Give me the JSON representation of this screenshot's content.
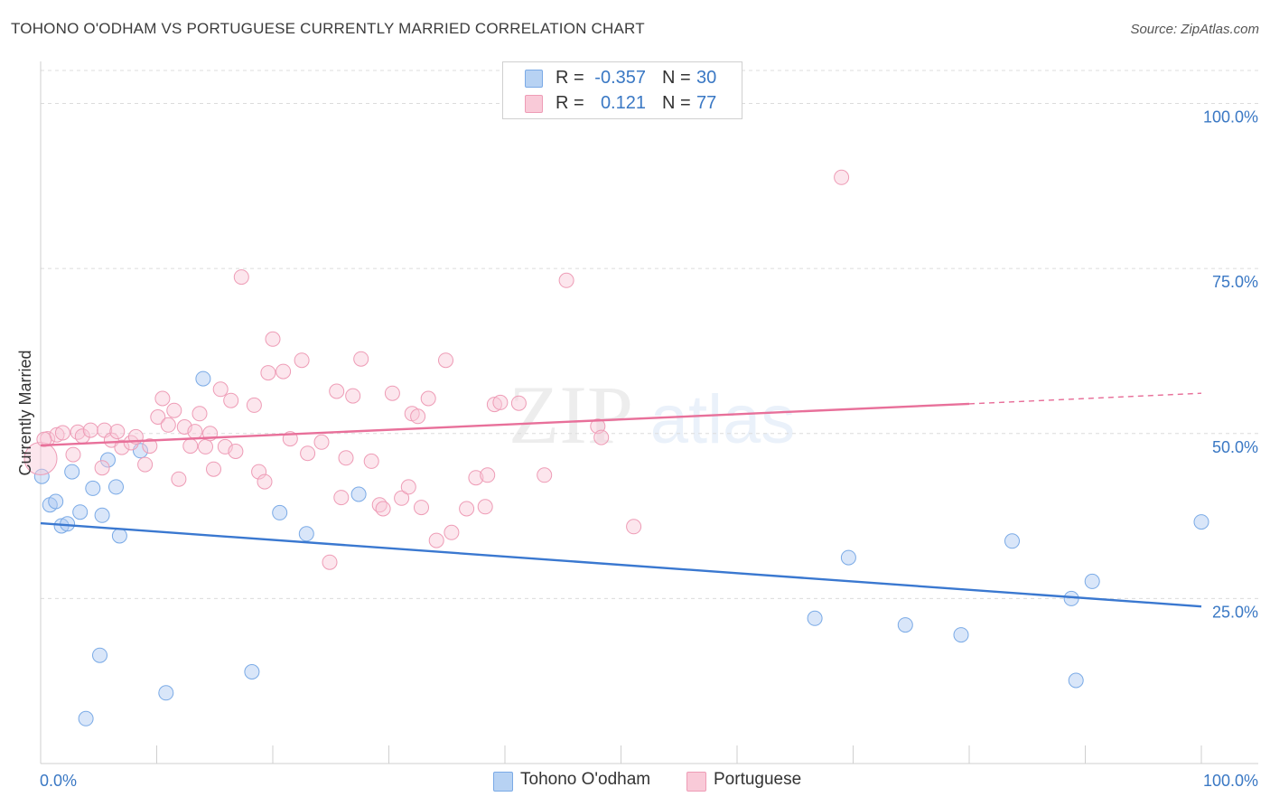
{
  "title": "TOHONO O'ODHAM VS PORTUGUESE CURRENTLY MARRIED CORRELATION CHART",
  "source": "Source: ZipAtlas.com",
  "watermark": {
    "zip": "ZIP",
    "atlas": "atlas"
  },
  "stats": [
    {
      "r_label": "R =",
      "r_value": "-0.357",
      "n_label": "N =",
      "n_value": "30",
      "color": "#a9c9f0",
      "border": "#7aaae6"
    },
    {
      "r_label": "R =",
      "r_value": "0.121",
      "n_label": "N =",
      "n_value": "77",
      "color": "#f8c3d3",
      "border": "#ee9cb6"
    }
  ],
  "legend": [
    {
      "label": "Tohono O'odham",
      "color": "#b7d2f3",
      "border": "#7aaae6"
    },
    {
      "label": "Portuguese",
      "color": "#f9cad8",
      "border": "#ee9cb6"
    }
  ],
  "chart_data": {
    "type": "scatter",
    "title": "TOHONO O'ODHAM VS PORTUGUESE CURRENTLY MARRIED CORRELATION CHART",
    "xlabel": "",
    "ylabel": "Currently Married",
    "xlim": [
      0,
      100
    ],
    "ylim": [
      0,
      105
    ],
    "x_tick_labels": [
      "0.0%",
      "100.0%"
    ],
    "y_ticks": [
      25,
      50,
      75,
      100
    ],
    "y_tick_labels": [
      "25.0%",
      "50.0%",
      "75.0%",
      "100.0%"
    ],
    "grid": true,
    "series": [
      {
        "name": "Tohono O'odham",
        "color": "#7aaae6",
        "fill": "rgba(170,200,242,0.45)",
        "line_color": "#3a78d0",
        "trend": {
          "x": [
            0,
            100
          ],
          "y": [
            36.4,
            23.8
          ]
        },
        "points": [
          [
            0.1,
            43.5
          ],
          [
            0.8,
            39.2
          ],
          [
            1.3,
            39.7
          ],
          [
            1.8,
            36.0
          ],
          [
            2.3,
            36.3
          ],
          [
            2.7,
            44.2
          ],
          [
            3.4,
            38.1
          ],
          [
            4.5,
            41.7
          ],
          [
            5.3,
            37.6
          ],
          [
            5.8,
            46.0
          ],
          [
            6.5,
            41.9
          ],
          [
            6.8,
            34.5
          ],
          [
            8.6,
            47.4
          ],
          [
            14.0,
            58.3
          ],
          [
            20.6,
            38.0
          ],
          [
            22.9,
            34.8
          ],
          [
            27.4,
            40.8
          ],
          [
            5.1,
            16.4
          ],
          [
            10.8,
            10.7
          ],
          [
            3.9,
            6.8
          ],
          [
            18.2,
            13.9
          ],
          [
            69.6,
            31.2
          ],
          [
            66.7,
            22.0
          ],
          [
            74.5,
            21.0
          ],
          [
            79.3,
            19.5
          ],
          [
            83.7,
            33.7
          ],
          [
            88.8,
            25.0
          ],
          [
            90.6,
            27.6
          ],
          [
            89.2,
            12.6
          ],
          [
            100.0,
            36.6
          ]
        ]
      },
      {
        "name": "Portuguese",
        "color": "#ee9cb6",
        "fill": "rgba(249,200,216,0.45)",
        "line_color": "#e8709a",
        "trend": {
          "x": [
            0,
            80
          ],
          "y": [
            48.2,
            54.5
          ]
        },
        "trend_extended": {
          "x": [
            80,
            100
          ],
          "y": [
            54.5,
            56.1
          ]
        },
        "points": [
          [
            0.0,
            46.2
          ],
          [
            0.6,
            49.2
          ],
          [
            1.4,
            49.8
          ],
          [
            1.9,
            50.1
          ],
          [
            2.8,
            46.8
          ],
          [
            3.2,
            50.2
          ],
          [
            3.6,
            49.6
          ],
          [
            4.3,
            50.5
          ],
          [
            5.3,
            44.8
          ],
          [
            5.5,
            50.5
          ],
          [
            6.1,
            49.0
          ],
          [
            6.6,
            50.3
          ],
          [
            7.0,
            47.9
          ],
          [
            7.8,
            48.6
          ],
          [
            8.2,
            49.5
          ],
          [
            9.0,
            45.3
          ],
          [
            9.4,
            48.1
          ],
          [
            10.1,
            52.5
          ],
          [
            10.5,
            55.3
          ],
          [
            11.0,
            51.3
          ],
          [
            11.5,
            53.5
          ],
          [
            11.9,
            43.1
          ],
          [
            12.4,
            51.0
          ],
          [
            12.9,
            48.1
          ],
          [
            13.3,
            50.3
          ],
          [
            13.7,
            53.0
          ],
          [
            14.2,
            48.0
          ],
          [
            14.6,
            50.0
          ],
          [
            14.9,
            44.6
          ],
          [
            15.5,
            56.7
          ],
          [
            15.9,
            48.0
          ],
          [
            16.4,
            55.0
          ],
          [
            16.8,
            47.3
          ],
          [
            17.3,
            73.7
          ],
          [
            18.4,
            54.3
          ],
          [
            18.8,
            44.2
          ],
          [
            19.3,
            42.7
          ],
          [
            19.6,
            59.2
          ],
          [
            20.0,
            64.3
          ],
          [
            20.9,
            59.4
          ],
          [
            21.5,
            49.2
          ],
          [
            22.5,
            61.1
          ],
          [
            23.0,
            47.0
          ],
          [
            24.2,
            48.7
          ],
          [
            24.9,
            30.5
          ],
          [
            25.5,
            56.4
          ],
          [
            25.9,
            40.3
          ],
          [
            26.3,
            46.3
          ],
          [
            26.9,
            55.7
          ],
          [
            27.6,
            61.3
          ],
          [
            28.5,
            45.8
          ],
          [
            29.2,
            39.2
          ],
          [
            29.5,
            38.6
          ],
          [
            30.3,
            56.1
          ],
          [
            31.1,
            40.2
          ],
          [
            31.7,
            41.9
          ],
          [
            32.0,
            53.0
          ],
          [
            32.5,
            52.6
          ],
          [
            32.8,
            38.8
          ],
          [
            33.4,
            55.3
          ],
          [
            34.1,
            33.8
          ],
          [
            34.9,
            61.1
          ],
          [
            35.4,
            35.0
          ],
          [
            36.7,
            38.6
          ],
          [
            37.5,
            43.3
          ],
          [
            38.3,
            38.9
          ],
          [
            38.5,
            43.7
          ],
          [
            39.1,
            54.4
          ],
          [
            39.6,
            54.7
          ],
          [
            41.2,
            54.6
          ],
          [
            43.4,
            43.7
          ],
          [
            45.3,
            73.2
          ],
          [
            48.0,
            51.1
          ],
          [
            48.3,
            49.4
          ],
          [
            51.1,
            35.9
          ],
          [
            69.0,
            88.8
          ],
          [
            0.3,
            49.1
          ]
        ]
      }
    ]
  }
}
